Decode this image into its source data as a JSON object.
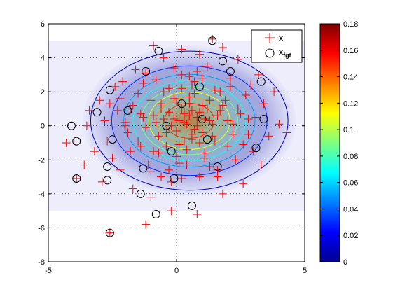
{
  "chart_data": {
    "type": "scatter",
    "title": "",
    "xlabel": "",
    "ylabel": "",
    "xlim": [
      -5,
      5
    ],
    "ylim": [
      -8,
      6
    ],
    "x_ticks": [
      -5,
      0,
      5
    ],
    "y_ticks": [
      -8,
      -6,
      -4,
      -2,
      0,
      2,
      4,
      6
    ],
    "grid": "dotted",
    "legend": {
      "placement": "top-right",
      "entries": [
        {
          "key": "x",
          "label": "x",
          "marker": "plus",
          "color": "#ff0000"
        },
        {
          "key": "xfgt",
          "label_base": "x",
          "label_sub": "fgt",
          "marker": "circle",
          "color": "#000000"
        }
      ]
    },
    "density_background": {
      "description": "Gaussian kernel density estimate shown as colored band",
      "band_y_range": [
        -5,
        5
      ],
      "band_x_range": [
        -5,
        5
      ],
      "center": [
        0.5,
        0.3
      ],
      "spread": [
        1.6,
        1.7
      ],
      "contour_levels": [
        0.01,
        0.03,
        0.05,
        0.07,
        0.09,
        0.11,
        0.13,
        0.15
      ],
      "colormap": "jet"
    },
    "colorbar": {
      "min": 0,
      "max": 0.18,
      "ticks": [
        0,
        0.02,
        0.04,
        0.06,
        0.08,
        0.1,
        0.12,
        0.14,
        0.16,
        0.18
      ],
      "tick_labels": [
        "0",
        "0.02",
        "0.04",
        "0.06",
        "0.08",
        "0.1",
        "0.12",
        "0.14",
        "0.16",
        "0.18"
      ]
    },
    "series": [
      {
        "name": "x",
        "marker": "plus",
        "color": "#ff0000",
        "points": [
          [
            -4.3,
            -1.0
          ],
          [
            -4.0,
            -0.9
          ],
          [
            -3.9,
            -3.1
          ],
          [
            -3.5,
            0.0
          ],
          [
            -3.4,
            0.9
          ],
          [
            -3.2,
            -1.5
          ],
          [
            -3.0,
            1.5
          ],
          [
            -2.9,
            -3.3
          ],
          [
            -2.8,
            0.3
          ],
          [
            -2.7,
            -0.9
          ],
          [
            -2.6,
            1.3
          ],
          [
            -2.5,
            -1.9
          ],
          [
            -2.4,
            2.3
          ],
          [
            -2.3,
            0.9
          ],
          [
            -2.2,
            -2.6
          ],
          [
            -2.1,
            2.6
          ],
          [
            -2.0,
            0.2
          ],
          [
            -1.9,
            -0.4
          ],
          [
            -1.8,
            1.0
          ],
          [
            -1.7,
            -3.7
          ],
          [
            -1.6,
            3.3
          ],
          [
            -1.5,
            1.9
          ],
          [
            -1.4,
            -1.2
          ],
          [
            -1.3,
            0.5
          ],
          [
            -1.2,
            3.1
          ],
          [
            -1.1,
            -2.3
          ],
          [
            -1.0,
            -4.2
          ],
          [
            -0.9,
            0.6
          ],
          [
            -0.8,
            2.7
          ],
          [
            -0.7,
            -1.6
          ],
          [
            -0.6,
            1.3
          ],
          [
            -0.5,
            4.0
          ],
          [
            -0.4,
            -0.4
          ],
          [
            -0.3,
            2.2
          ],
          [
            -0.2,
            -3.3
          ],
          [
            -0.1,
            0.4
          ],
          [
            0.0,
            1.4
          ],
          [
            0.1,
            -1.1
          ],
          [
            0.2,
            3.0
          ],
          [
            0.3,
            0.2
          ],
          [
            0.4,
            -2.3
          ],
          [
            0.5,
            1.7
          ],
          [
            0.6,
            -0.8
          ],
          [
            0.7,
            2.6
          ],
          [
            0.8,
            0.5
          ],
          [
            0.9,
            -3.0
          ],
          [
            1.0,
            1.2
          ],
          [
            1.1,
            -1.6
          ],
          [
            1.2,
            3.5
          ],
          [
            1.3,
            0.3
          ],
          [
            1.4,
            -0.6
          ],
          [
            1.5,
            2.1
          ],
          [
            1.6,
            -2.6
          ],
          [
            1.7,
            0.9
          ],
          [
            1.8,
            -4.0
          ],
          [
            1.9,
            1.5
          ],
          [
            2.0,
            -1.2
          ],
          [
            2.1,
            2.8
          ],
          [
            2.2,
            0.1
          ],
          [
            2.3,
            -2.0
          ],
          [
            2.4,
            3.9
          ],
          [
            2.5,
            0.7
          ],
          [
            2.6,
            -3.4
          ],
          [
            2.7,
            1.8
          ],
          [
            2.8,
            -0.5
          ],
          [
            2.9,
            2.4
          ],
          [
            3.0,
            -1.5
          ],
          [
            3.1,
            0.5
          ],
          [
            3.3,
            -2.3
          ],
          [
            3.4,
            1.3
          ],
          [
            3.6,
            -0.6
          ],
          [
            3.8,
            2.0
          ],
          [
            4.0,
            0.1
          ],
          [
            4.3,
            -0.4
          ],
          [
            3.2,
            3.0
          ],
          [
            -3.6,
            -2.3
          ],
          [
            -0.2,
            -5.0
          ],
          [
            0.8,
            -5.2
          ],
          [
            -1.2,
            -5.8
          ],
          [
            -2.6,
            -6.3
          ],
          [
            1.4,
            5.1
          ],
          [
            0.2,
            4.5
          ],
          [
            -0.9,
            4.7
          ],
          [
            0.9,
            4.2
          ],
          [
            1.8,
            4.6
          ],
          [
            0.5,
            0.6
          ],
          [
            0.6,
            0.9
          ],
          [
            0.4,
            0.1
          ],
          [
            0.3,
            0.7
          ],
          [
            0.8,
            0.0
          ],
          [
            0.2,
            1.0
          ],
          [
            0.7,
            -0.2
          ],
          [
            0.1,
            0.3
          ],
          [
            0.9,
            0.8
          ],
          [
            0.0,
            -0.3
          ],
          [
            -0.3,
            0.8
          ],
          [
            1.1,
            0.4
          ],
          [
            0.6,
            -0.5
          ],
          [
            -0.2,
            0.0
          ],
          [
            1.2,
            1.0
          ],
          [
            -0.5,
            0.4
          ],
          [
            0.5,
            1.3
          ],
          [
            0.3,
            -0.9
          ],
          [
            1.0,
            -0.4
          ],
          [
            -0.6,
            1.0
          ],
          [
            1.4,
            0.1
          ],
          [
            -0.1,
            1.6
          ],
          [
            0.4,
            -1.4
          ],
          [
            1.3,
            1.5
          ],
          [
            -0.7,
            -0.6
          ],
          [
            0.7,
            1.9
          ],
          [
            -0.4,
            -1.2
          ],
          [
            1.6,
            0.6
          ],
          [
            -0.8,
            0.2
          ],
          [
            0.9,
            -1.0
          ],
          [
            0.2,
            2.2
          ],
          [
            -1.0,
            1.5
          ],
          [
            1.5,
            -0.9
          ],
          [
            0.0,
            -1.8
          ],
          [
            1.8,
            1.2
          ],
          [
            -1.2,
            -0.1
          ],
          [
            0.6,
            2.4
          ],
          [
            -0.9,
            -1.5
          ],
          [
            2.0,
            0.3
          ],
          [
            -0.5,
            2.0
          ],
          [
            1.1,
            -1.9
          ],
          [
            -1.4,
            0.7
          ],
          [
            0.1,
            -2.2
          ],
          [
            1.7,
            2.0
          ],
          [
            -1.5,
            -0.9
          ],
          [
            2.2,
            -0.5
          ],
          [
            -0.3,
            -2.6
          ],
          [
            0.5,
            2.9
          ],
          [
            -1.7,
            1.2
          ],
          [
            1.3,
            -2.4
          ],
          [
            2.4,
            1.0
          ],
          [
            -1.8,
            -1.5
          ],
          [
            0.8,
            3.2
          ],
          [
            -0.6,
            -3.0
          ],
          [
            2.6,
            -1.1
          ],
          [
            -2.0,
            0.0
          ],
          [
            1.0,
            2.8
          ],
          [
            -1.3,
            2.5
          ],
          [
            0.2,
            -3.1
          ],
          [
            2.1,
            2.3
          ],
          [
            -2.2,
            1.6
          ],
          [
            1.6,
            -3.0
          ],
          [
            -1.0,
            -2.7
          ],
          [
            2.8,
            0.4
          ],
          [
            -0.1,
            3.4
          ]
        ]
      },
      {
        "name": "xfgt",
        "marker": "circle",
        "color": "#000000",
        "points": [
          [
            1.4,
            5.0
          ],
          [
            -0.7,
            4.4
          ],
          [
            1.8,
            3.8
          ],
          [
            2.1,
            3.2
          ],
          [
            -1.2,
            3.2
          ],
          [
            0.9,
            2.3
          ],
          [
            -2.6,
            2.1
          ],
          [
            -1.9,
            0.9
          ],
          [
            -3.1,
            0.8
          ],
          [
            3.3,
            2.6
          ],
          [
            3.4,
            0.4
          ],
          [
            -4.1,
            0.0
          ],
          [
            -3.9,
            -0.9
          ],
          [
            1.2,
            -0.8
          ],
          [
            -2.5,
            -0.8
          ],
          [
            3.1,
            -1.3
          ],
          [
            -0.2,
            -1.5
          ],
          [
            -2.7,
            -2.4
          ],
          [
            -1.3,
            -2.5
          ],
          [
            1.6,
            -2.4
          ],
          [
            -3.9,
            -3.1
          ],
          [
            -2.7,
            -3.2
          ],
          [
            -0.1,
            -3.1
          ],
          [
            -1.4,
            -4.0
          ],
          [
            0.6,
            -4.7
          ],
          [
            -0.8,
            -5.2
          ],
          [
            -2.6,
            -6.3
          ],
          [
            1.0,
            0.4
          ],
          [
            0.2,
            1.3
          ],
          [
            -0.4,
            0.0
          ]
        ]
      }
    ]
  }
}
